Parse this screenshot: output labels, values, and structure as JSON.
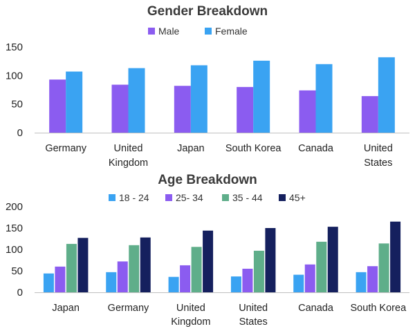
{
  "chart_data": [
    {
      "type": "bar",
      "title": "Gender Breakdown",
      "categories": [
        [
          "Germany"
        ],
        [
          "United",
          "Kingdom"
        ],
        [
          "Japan"
        ],
        [
          "South Korea"
        ],
        [
          "Canada"
        ],
        [
          "United",
          "States"
        ]
      ],
      "series": [
        {
          "name": "Male",
          "color": "#8b5cf0",
          "values": [
            93,
            84,
            82,
            80,
            74,
            64
          ]
        },
        {
          "name": "Female",
          "color": "#3aa3f2",
          "values": [
            107,
            113,
            118,
            126,
            120,
            132
          ]
        }
      ],
      "yticks": [
        0,
        50,
        100,
        150
      ],
      "ylim": [
        0,
        150
      ],
      "legend": "top-center",
      "grid": false
    },
    {
      "type": "bar",
      "title": "Age Breakdown",
      "categories": [
        [
          "Japan"
        ],
        [
          "Germany"
        ],
        [
          "United",
          "Kingdom"
        ],
        [
          "United",
          "States"
        ],
        [
          "Canada"
        ],
        [
          "South Korea"
        ]
      ],
      "series": [
        {
          "name": "18 - 24",
          "color": "#3aa3f2",
          "values": [
            44,
            47,
            36,
            37,
            41,
            47
          ]
        },
        {
          "name": "25- 34",
          "color": "#8b5cf0",
          "values": [
            60,
            72,
            63,
            55,
            65,
            61
          ]
        },
        {
          "name": "35 - 44",
          "color": "#5fae8a",
          "values": [
            113,
            110,
            106,
            97,
            118,
            114
          ]
        },
        {
          "name": "45+",
          "color": "#15205e",
          "values": [
            127,
            128,
            144,
            150,
            153,
            165
          ]
        }
      ],
      "yticks": [
        0,
        50,
        100,
        150,
        200
      ],
      "ylim": [
        0,
        200
      ],
      "legend": "top-center",
      "grid": false
    }
  ]
}
